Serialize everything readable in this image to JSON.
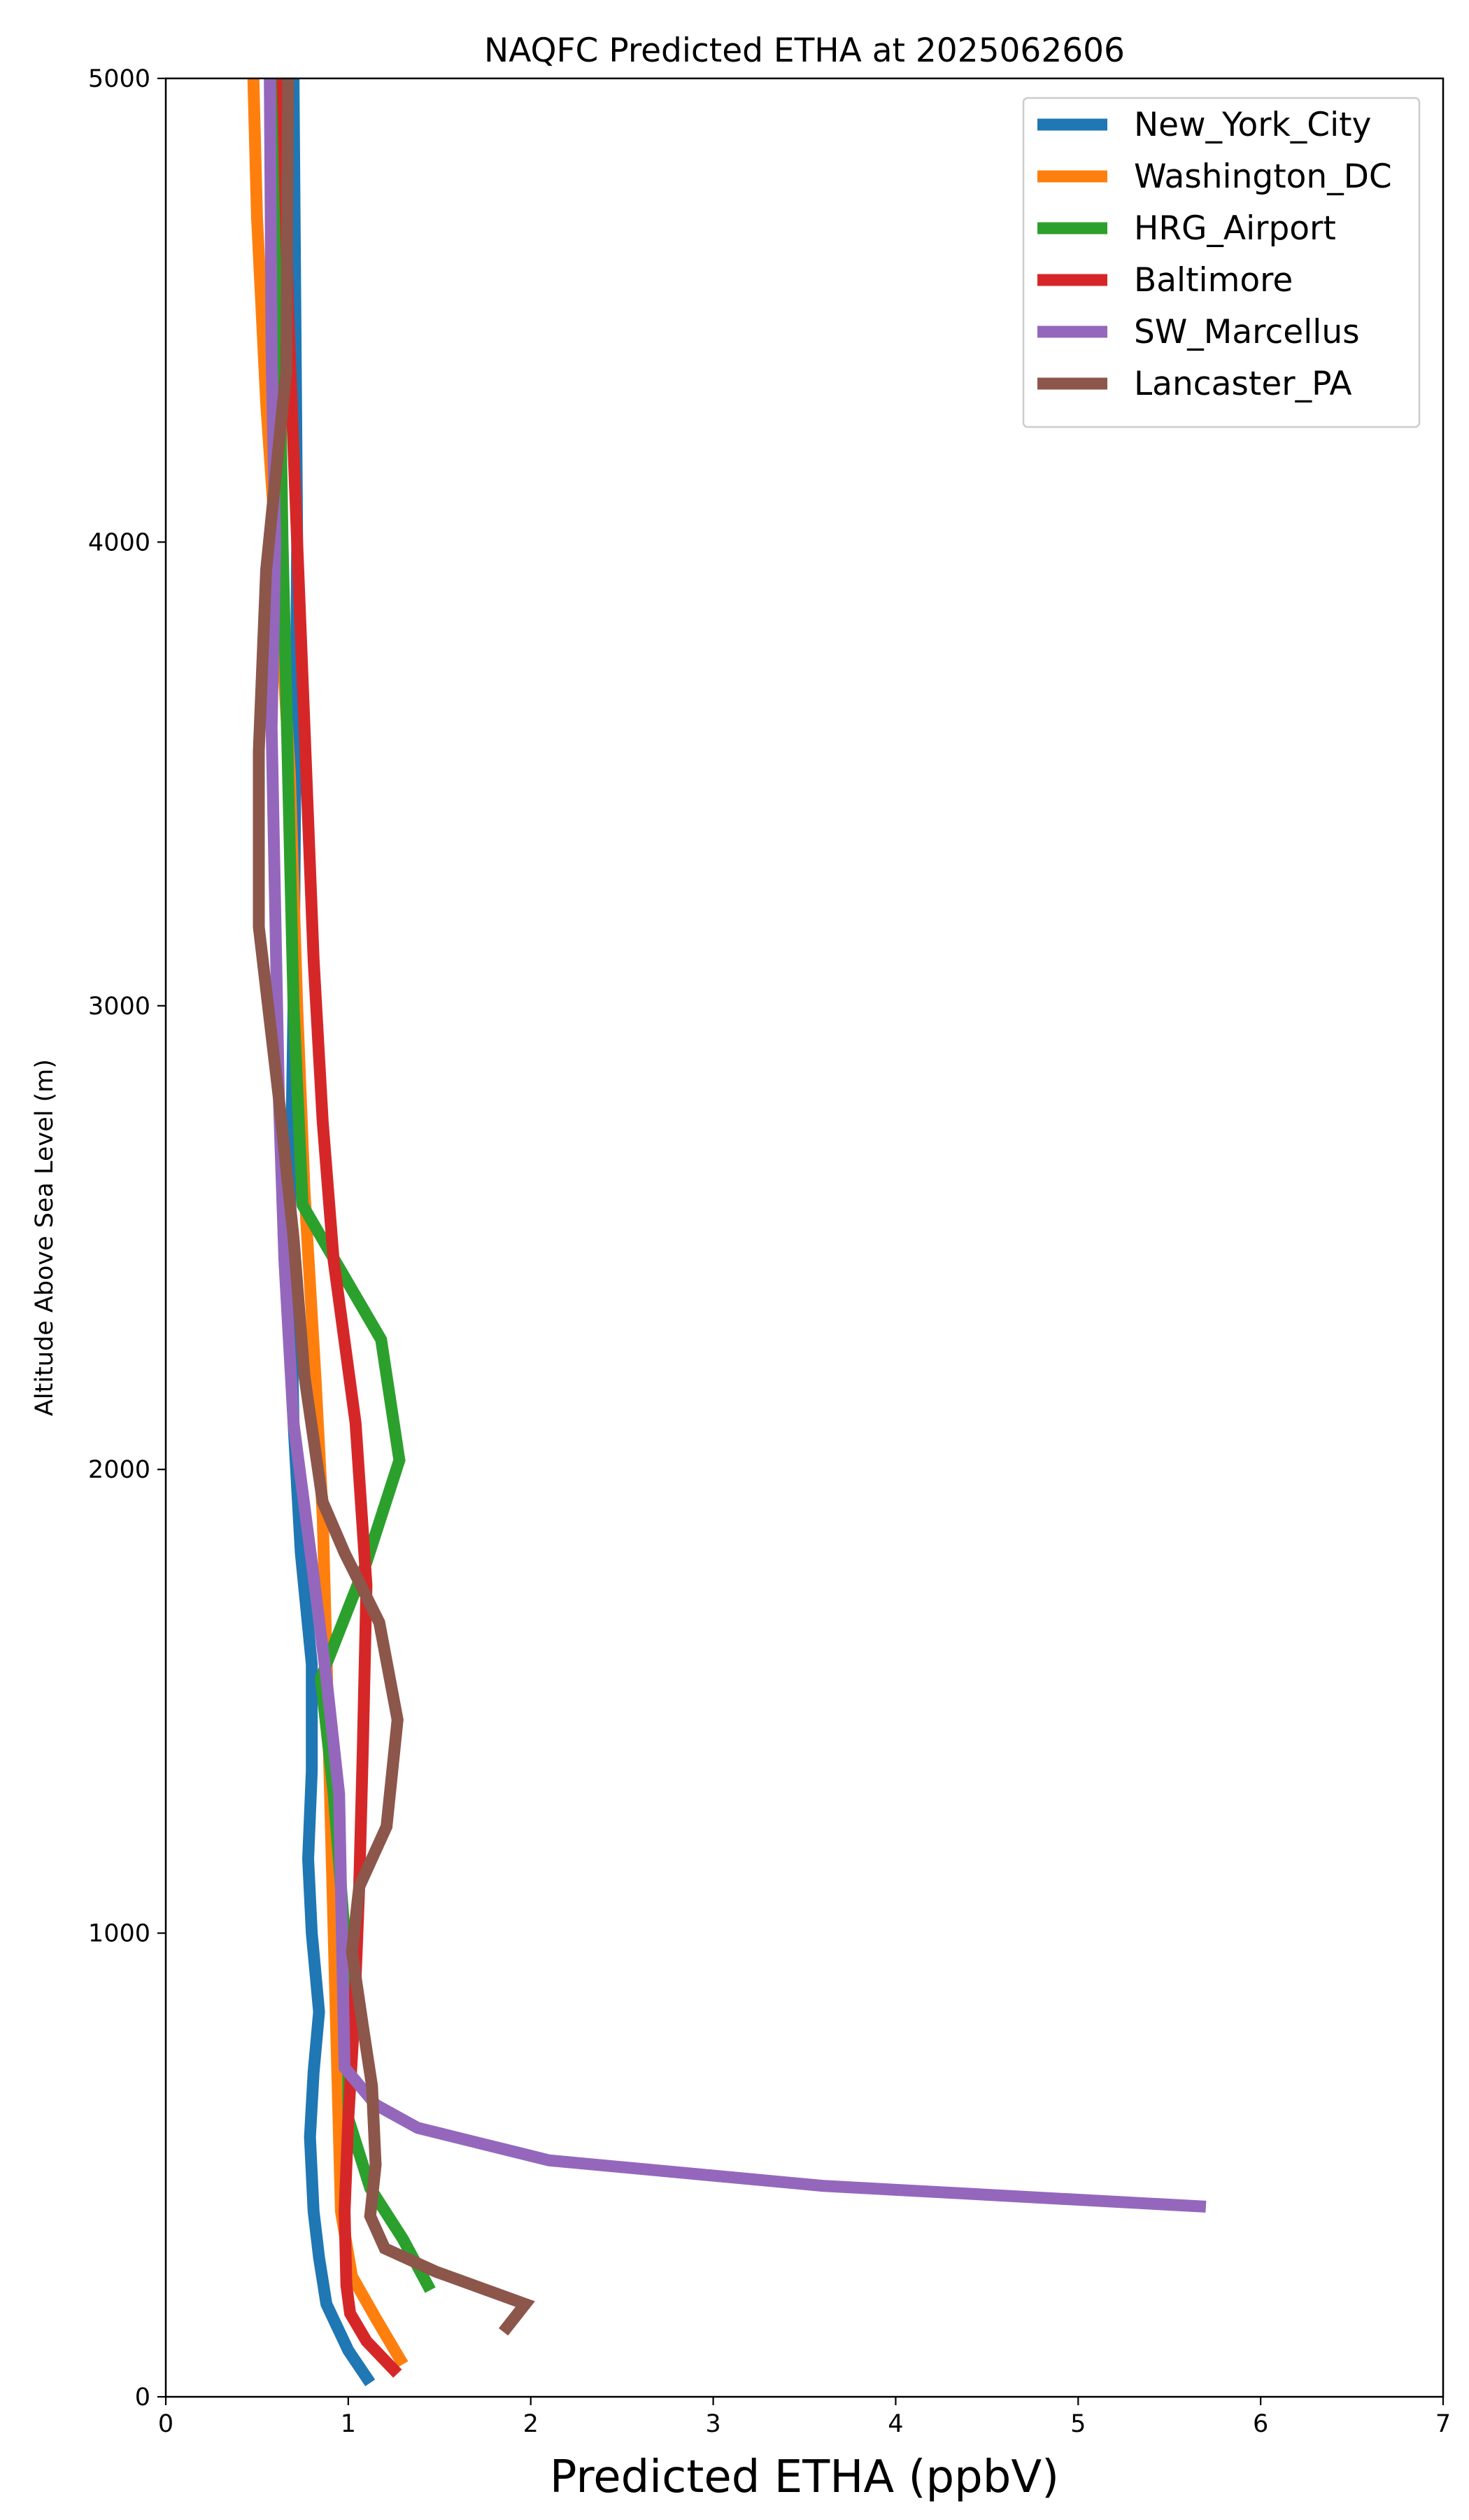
{
  "chart_data": {
    "type": "line",
    "title": "NAQFC Predicted ETHA at 2025062606",
    "xlabel": "Predicted ETHA (ppbV)",
    "ylabel": "Altitude Above Sea Level (m)",
    "xlim": [
      0,
      7
    ],
    "ylim": [
      0,
      5000
    ],
    "xticks": [
      "0",
      "1",
      "2",
      "3",
      "4",
      "5",
      "6",
      "7"
    ],
    "yticks": [
      "0",
      "1000",
      "2000",
      "3000",
      "4000",
      "5000"
    ],
    "grid": false,
    "legend_position": "upper right",
    "series": [
      {
        "name": "New_York_City",
        "color": "#1f77b4",
        "points": [
          [
            1.12,
            30
          ],
          [
            1.0,
            100
          ],
          [
            0.88,
            200
          ],
          [
            0.84,
            300
          ],
          [
            0.81,
            400
          ],
          [
            0.79,
            560
          ],
          [
            0.81,
            700
          ],
          [
            0.84,
            830
          ],
          [
            0.8,
            1000
          ],
          [
            0.78,
            1160
          ],
          [
            0.8,
            1350
          ],
          [
            0.8,
            1580
          ],
          [
            0.74,
            1820
          ],
          [
            0.7,
            2100
          ],
          [
            0.68,
            2500
          ],
          [
            0.7,
            3000
          ],
          [
            0.71,
            3500
          ],
          [
            0.72,
            4000
          ],
          [
            0.71,
            4500
          ],
          [
            0.7,
            5000
          ]
        ]
      },
      {
        "name": "Washington_DC",
        "color": "#ff7f0e",
        "points": [
          [
            1.3,
            70
          ],
          [
            1.15,
            170
          ],
          [
            1.02,
            260
          ],
          [
            0.96,
            400
          ],
          [
            0.94,
            700
          ],
          [
            0.92,
            1000
          ],
          [
            0.9,
            1300
          ],
          [
            0.88,
            1600
          ],
          [
            0.86,
            1900
          ],
          [
            0.82,
            2200
          ],
          [
            0.76,
            2600
          ],
          [
            0.72,
            3000
          ],
          [
            0.68,
            3500
          ],
          [
            0.62,
            3900
          ],
          [
            0.55,
            4300
          ],
          [
            0.5,
            4700
          ],
          [
            0.48,
            5000
          ]
        ]
      },
      {
        "name": "HRG_Airport",
        "color": "#2ca02c",
        "points": [
          [
            1.45,
            230
          ],
          [
            1.3,
            340
          ],
          [
            1.12,
            450
          ],
          [
            1.0,
            600
          ],
          [
            1.0,
            800
          ],
          [
            0.98,
            1000
          ],
          [
            0.92,
            1300
          ],
          [
            0.85,
            1550
          ],
          [
            1.1,
            1800
          ],
          [
            1.28,
            2020
          ],
          [
            1.18,
            2280
          ],
          [
            0.75,
            2570
          ],
          [
            0.7,
            3000
          ],
          [
            0.67,
            3500
          ],
          [
            0.64,
            4000
          ],
          [
            0.62,
            4500
          ],
          [
            0.6,
            5000
          ]
        ]
      },
      {
        "name": "Baltimore",
        "color": "#d62728",
        "points": [
          [
            1.27,
            50
          ],
          [
            1.1,
            120
          ],
          [
            1.01,
            180
          ],
          [
            0.99,
            240
          ],
          [
            0.98,
            400
          ],
          [
            1.0,
            600
          ],
          [
            1.03,
            800
          ],
          [
            1.06,
            1100
          ],
          [
            1.08,
            1400
          ],
          [
            1.1,
            1750
          ],
          [
            1.04,
            2100
          ],
          [
            0.92,
            2450
          ],
          [
            0.86,
            2750
          ],
          [
            0.81,
            3100
          ],
          [
            0.76,
            3600
          ],
          [
            0.72,
            4000
          ],
          [
            0.67,
            4500
          ],
          [
            0.64,
            5000
          ]
        ]
      },
      {
        "name": "SW_Marcellus",
        "color": "#9467bd",
        "points": [
          [
            5.7,
            410
          ],
          [
            3.6,
            455
          ],
          [
            2.1,
            510
          ],
          [
            1.38,
            580
          ],
          [
            1.15,
            630
          ],
          [
            0.98,
            710
          ],
          [
            0.97,
            900
          ],
          [
            0.95,
            1300
          ],
          [
            0.88,
            1550
          ],
          [
            0.8,
            1800
          ],
          [
            0.7,
            2100
          ],
          [
            0.65,
            2450
          ],
          [
            0.62,
            2800
          ],
          [
            0.6,
            3200
          ],
          [
            0.58,
            3600
          ],
          [
            0.6,
            4000
          ],
          [
            0.58,
            4400
          ],
          [
            0.57,
            5000
          ]
        ]
      },
      {
        "name": "Lancaster_PA",
        "color": "#8c564b",
        "points": [
          [
            1.85,
            140
          ],
          [
            1.97,
            200
          ],
          [
            1.48,
            270
          ],
          [
            1.2,
            320
          ],
          [
            1.12,
            390
          ],
          [
            1.15,
            500
          ],
          [
            1.13,
            670
          ],
          [
            1.08,
            800
          ],
          [
            1.02,
            960
          ],
          [
            1.06,
            1100
          ],
          [
            1.21,
            1230
          ],
          [
            1.27,
            1460
          ],
          [
            1.17,
            1670
          ],
          [
            0.98,
            1820
          ],
          [
            0.86,
            1930
          ],
          [
            0.76,
            2200
          ],
          [
            0.7,
            2500
          ],
          [
            0.62,
            2800
          ],
          [
            0.51,
            3170
          ],
          [
            0.51,
            3550
          ],
          [
            0.55,
            3940
          ],
          [
            0.66,
            4370
          ],
          [
            0.67,
            5000
          ]
        ]
      }
    ]
  }
}
